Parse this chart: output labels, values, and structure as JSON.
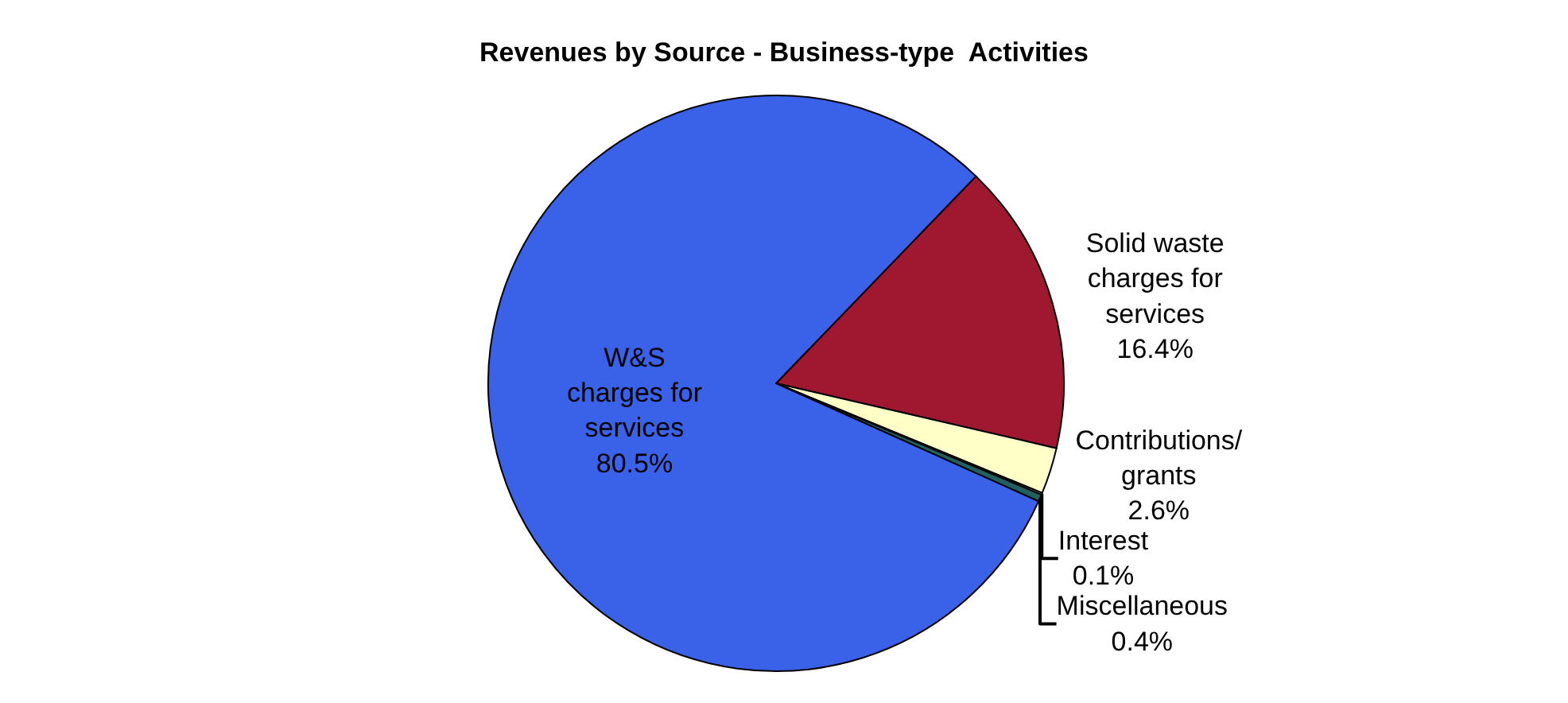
{
  "chart_data": {
    "type": "pie",
    "title": "Revenues by Source - Business-type  Activities",
    "categories": [
      "Solid waste\ncharges for\nservices",
      "Contributions/\ngrants",
      "Interest",
      "Miscellaneous",
      "W&S\ncharges for\nservices"
    ],
    "values": [
      16.4,
      2.6,
      0.1,
      0.4,
      80.5
    ],
    "value_labels": [
      "16.4%",
      "2.6%",
      "0.1%",
      "0.4%",
      "80.5%"
    ],
    "colors": [
      "#a01830",
      "#ffffc8",
      "#e0e0e0",
      "#206060",
      "#3a62e8"
    ],
    "legend": false
  }
}
